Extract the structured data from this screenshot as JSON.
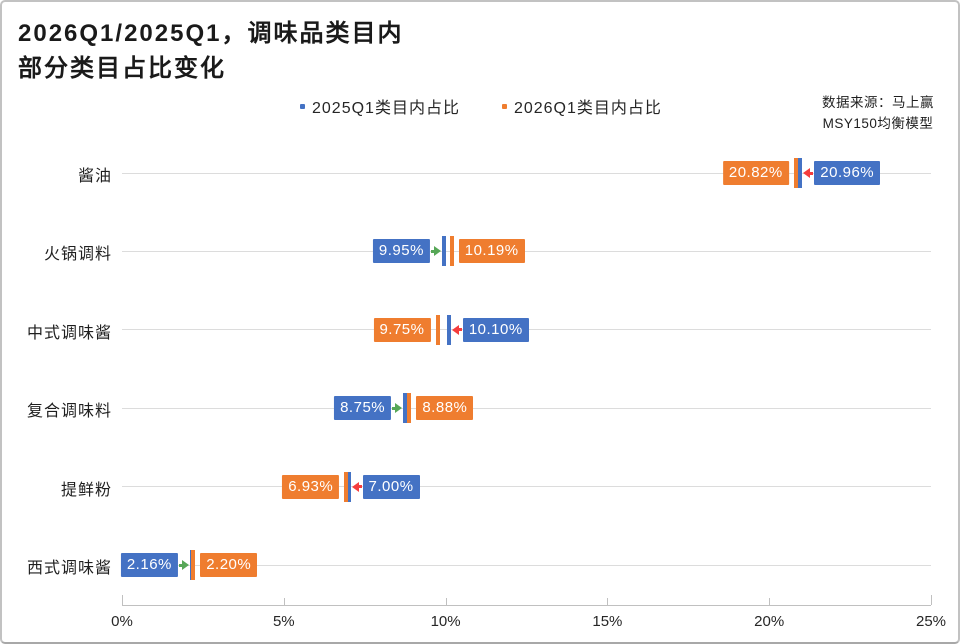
{
  "title": {
    "line1": "2026Q1/2025Q1，调味品类目内",
    "line2": "部分类目占比变化"
  },
  "legend": [
    {
      "label": "2025Q1类目内占比",
      "color": "#4472C4"
    },
    {
      "label": "2026Q1类目内占比",
      "color": "#EF7D2F"
    }
  ],
  "source": {
    "line1": "数据来源：马上赢",
    "line2": "MSY150均衡模型"
  },
  "colors": {
    "blue_2025": "#4472C4",
    "orange_2026": "#EF7D2F",
    "increase_arrow": "#57A757",
    "decrease_arrow": "#F53D3D",
    "gridline": "#DCDCDC",
    "axis": "#C0C0C0"
  },
  "chart_data": {
    "type": "bar",
    "subtype": "dumbbell-comparison",
    "title": "2026Q1/2025Q1，调味品类目内 部分类目占比变化",
    "categories": [
      "酱油",
      "火锅调料",
      "中式调味酱",
      "复合调味料",
      "提鲜粉",
      "西式调味酱"
    ],
    "series": [
      {
        "name": "2025Q1类目内占比",
        "color": "#4472C4",
        "values": [
          20.96,
          9.95,
          10.1,
          8.75,
          7.0,
          2.16
        ]
      },
      {
        "name": "2026Q1类目内占比",
        "color": "#EF7D2F",
        "values": [
          20.82,
          10.19,
          9.75,
          8.88,
          6.93,
          2.2
        ]
      }
    ],
    "value_labels": [
      {
        "y2025": "20.96%",
        "y2026": "20.82%",
        "direction": "down"
      },
      {
        "y2025": "9.95%",
        "y2026": "10.19%",
        "direction": "up"
      },
      {
        "y2025": "10.10%",
        "y2026": "9.75%",
        "direction": "down"
      },
      {
        "y2025": "8.75%",
        "y2026": "8.88%",
        "direction": "up"
      },
      {
        "y2025": "7.00%",
        "y2026": "6.93%",
        "direction": "down"
      },
      {
        "y2025": "2.16%",
        "y2026": "2.20%",
        "direction": "up"
      }
    ],
    "xlabel": "",
    "ylabel": "",
    "xlim": [
      0,
      25
    ],
    "x_ticks": [
      "0%",
      "5%",
      "10%",
      "15%",
      "20%",
      "25%"
    ],
    "x_tick_values": [
      0,
      5,
      10,
      15,
      20,
      25
    ],
    "grid": true,
    "legend_position": "top"
  }
}
